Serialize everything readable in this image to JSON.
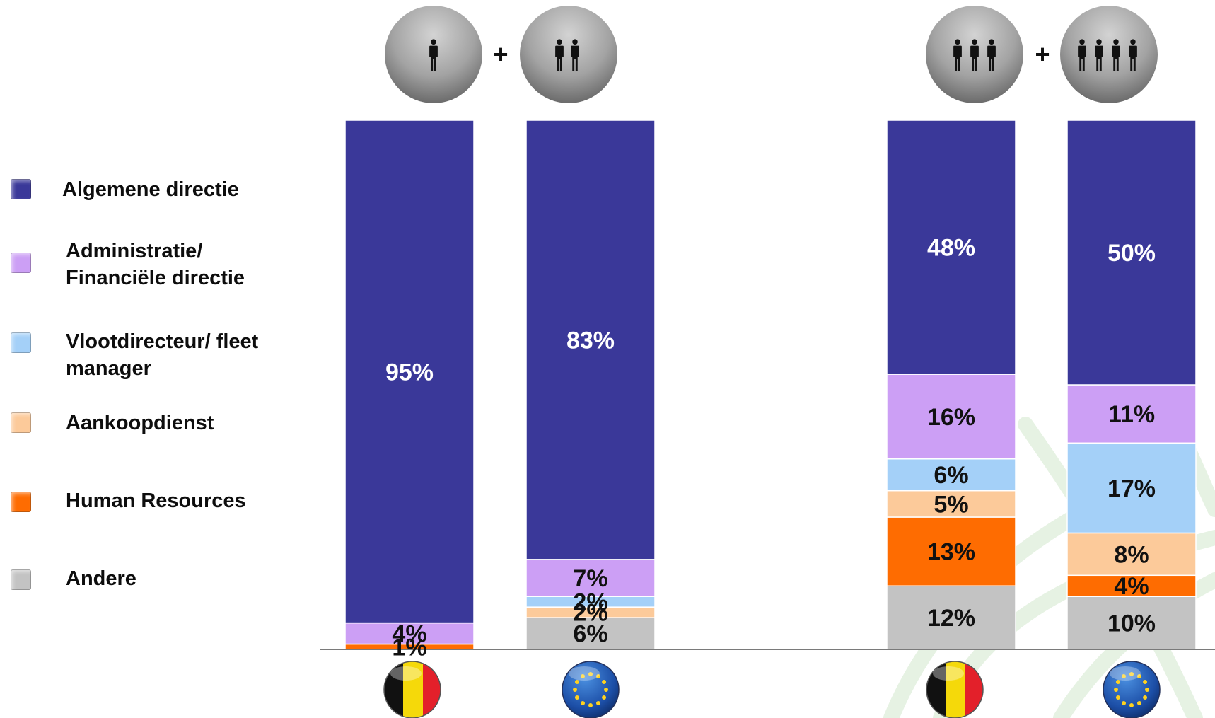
{
  "colors": {
    "algemene": "#3a3899",
    "admin": "#cc9ff5",
    "vloot": "#a4d0f8",
    "aankoop": "#fcca9a",
    "hr": "#fe6c01",
    "andere": "#c3c3c3"
  },
  "legend": [
    {
      "key": "algemene",
      "label": "Algemene directie"
    },
    {
      "key": "admin",
      "label": "Administratie/ Financiële directie"
    },
    {
      "key": "vloot",
      "label": "Vlootdirecteur/ fleet manager"
    },
    {
      "key": "aankoop",
      "label": "Aankoopdienst"
    },
    {
      "key": "hr",
      "label": "Human Resources"
    },
    {
      "key": "andere",
      "label": "Andere"
    }
  ],
  "groups": [
    {
      "plus": "+",
      "left_icon": "one-person-icon",
      "right_icon": "two-persons-icon"
    },
    {
      "plus": "+",
      "left_icon": "three-persons-icon",
      "right_icon": "four-persons-icon"
    }
  ],
  "chart_data": {
    "type": "bar",
    "stacked": true,
    "categories": [
      "",
      "",
      "",
      ""
    ],
    "category_icons": [
      "belgium-flag-icon",
      "eu-flag-icon",
      "belgium-flag-icon",
      "eu-flag-icon"
    ],
    "series": [
      {
        "name": "Andere",
        "values": [
          0,
          6,
          12,
          10
        ],
        "labels": [
          "",
          "6%",
          "12%",
          "10%"
        ]
      },
      {
        "name": "Human Resources",
        "values": [
          1,
          0,
          13,
          4
        ],
        "labels": [
          "1%",
          "",
          "13%",
          "4%"
        ]
      },
      {
        "name": "Aankoopdienst",
        "values": [
          0,
          2,
          5,
          8
        ],
        "labels": [
          "",
          "2%",
          "5%",
          "8%"
        ]
      },
      {
        "name": "Vlootdirecteur/ fleet manager",
        "values": [
          0,
          2,
          6,
          17
        ],
        "labels": [
          "",
          "2%",
          "6%",
          "17%"
        ]
      },
      {
        "name": "Administratie/ Financiële directie",
        "values": [
          4,
          7,
          16,
          11
        ],
        "labels": [
          "4%",
          "7%",
          "16%",
          "11%"
        ]
      },
      {
        "name": "Algemene directie",
        "values": [
          95,
          83,
          48,
          50
        ],
        "labels": [
          "95%",
          "83%",
          "48%",
          "50%"
        ]
      }
    ],
    "ylim": [
      0,
      100
    ],
    "grid": false,
    "legend_position": "left"
  }
}
